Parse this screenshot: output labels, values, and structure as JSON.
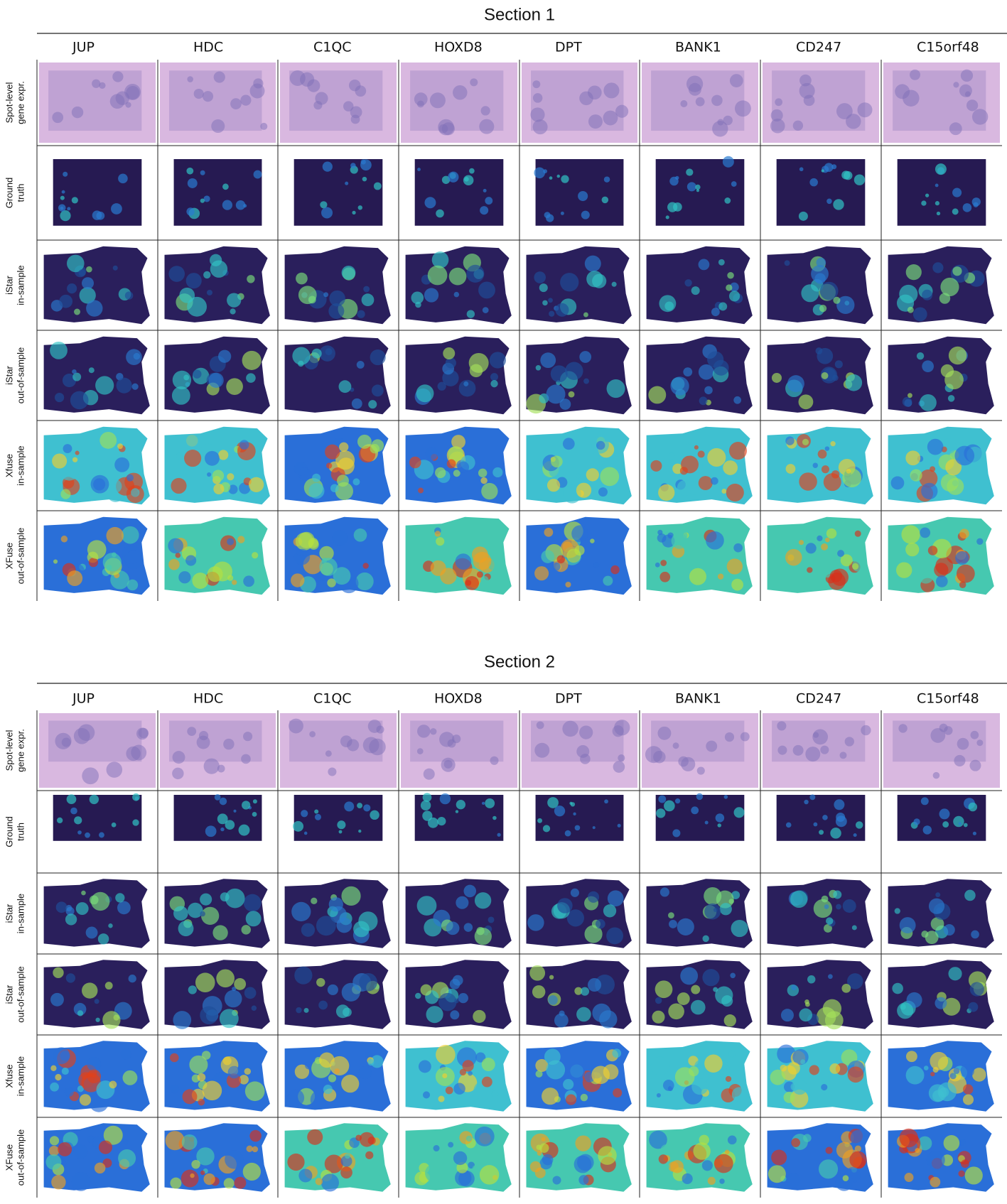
{
  "sections": [
    {
      "title": "Section 1",
      "genes": [
        "JUP",
        "HDC",
        "C1QC",
        "HOXD8",
        "DPT",
        "BANK1",
        "CD247",
        "C15orf48"
      ],
      "rows": [
        [
          "Spot-level",
          "gene expr."
        ],
        [
          "Ground",
          "truth"
        ],
        [
          "iStar",
          "in-sample"
        ],
        [
          "iStar",
          "out-of-sample"
        ],
        [
          "Xfuse",
          "in-sample"
        ],
        [
          "XFuse",
          "out-of-sample"
        ]
      ]
    },
    {
      "title": "Section 2",
      "genes": [
        "JUP",
        "HDC",
        "C1QC",
        "HOXD8",
        "DPT",
        "BANK1",
        "CD247",
        "C15orf48"
      ],
      "rows": [
        [
          "Spot-level",
          "gene expr."
        ],
        [
          "Ground",
          "truth"
        ],
        [
          "iStar",
          "in-sample"
        ],
        [
          "iStar",
          "out-of-sample"
        ],
        [
          "Xfuse",
          "in-sample"
        ],
        [
          "XFuse",
          "out-of-sample"
        ]
      ]
    }
  ]
}
